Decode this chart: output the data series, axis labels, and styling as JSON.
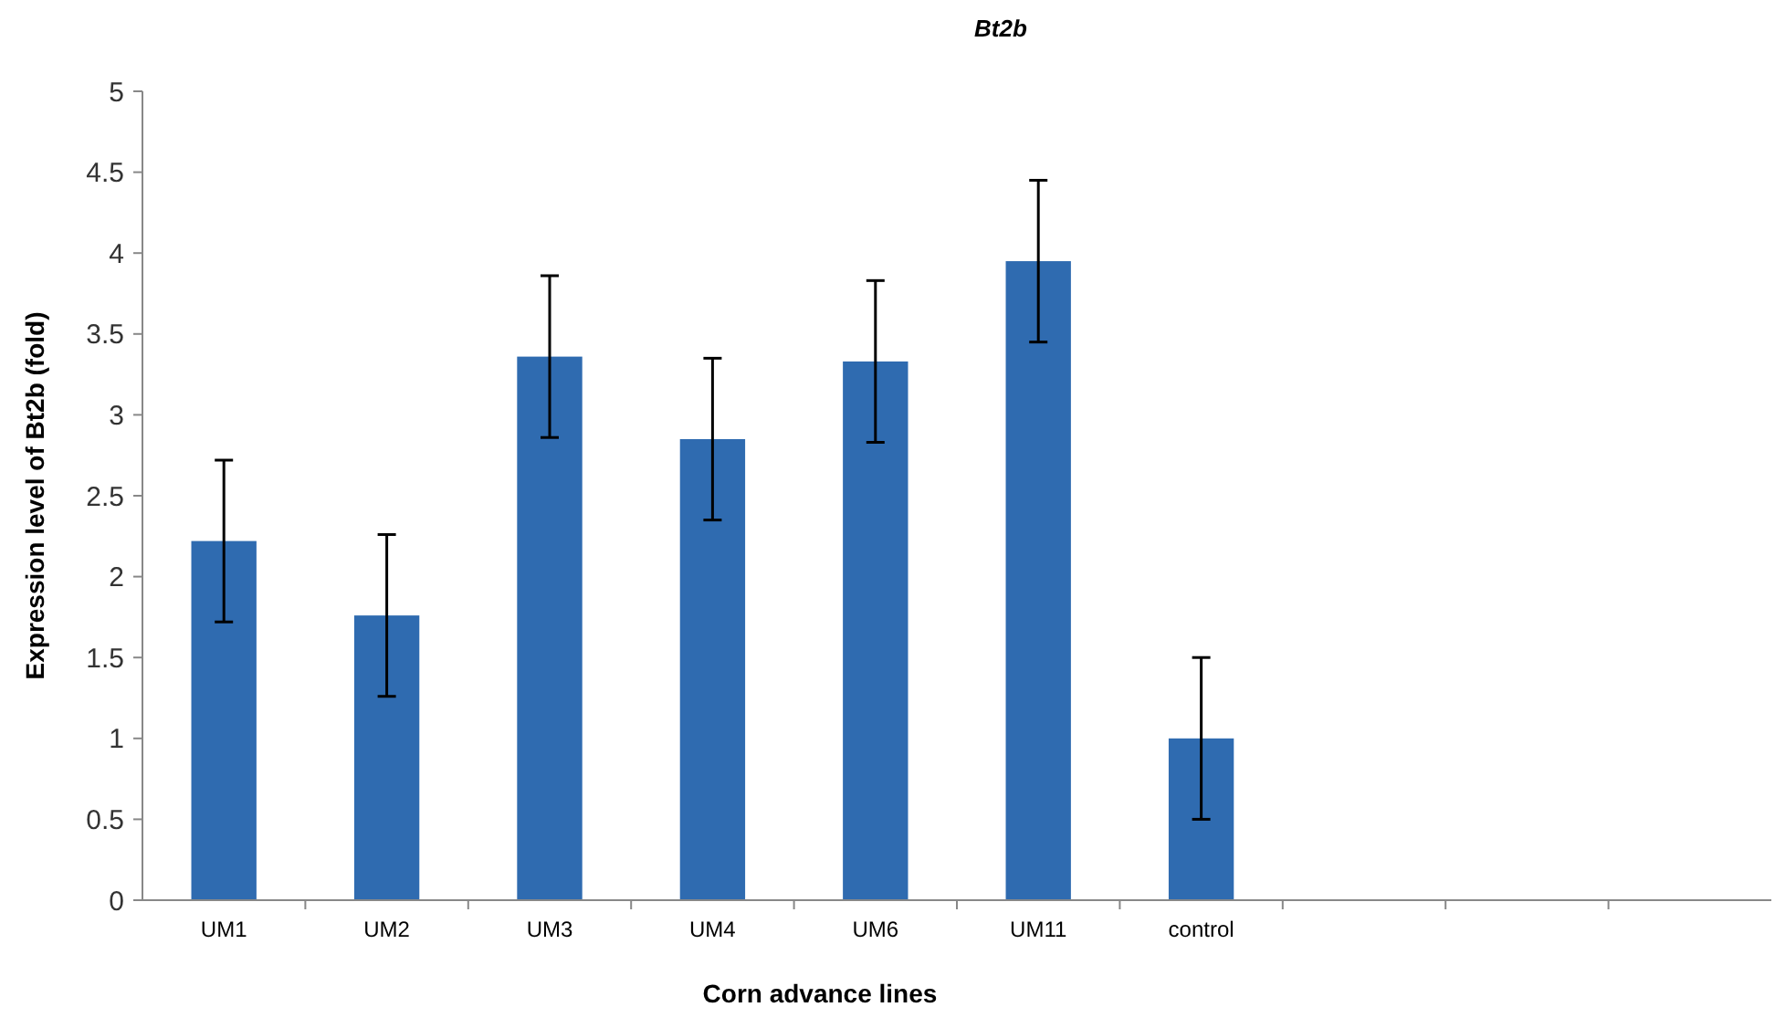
{
  "chart_data": {
    "type": "bar",
    "title": "Bt2b",
    "xlabel": "Corn advance lines",
    "ylabel": "Expression level of Bt2b (fold)",
    "categories": [
      "UM1",
      "UM2",
      "UM3",
      "UM4",
      "UM6",
      "UM11",
      "control",
      null,
      null,
      null
    ],
    "values": [
      2.22,
      1.76,
      3.36,
      2.85,
      3.33,
      3.95,
      1.0,
      null,
      null,
      null
    ],
    "errors": [
      0.5,
      0.5,
      0.5,
      0.5,
      0.5,
      0.5,
      0.5,
      null,
      null,
      null
    ],
    "color": "#2f6bb0",
    "ylim": [
      0,
      5
    ],
    "yticks": [
      0,
      0.5,
      1,
      1.5,
      2,
      2.5,
      3,
      3.5,
      4,
      4.5,
      5
    ],
    "grid": false
  }
}
